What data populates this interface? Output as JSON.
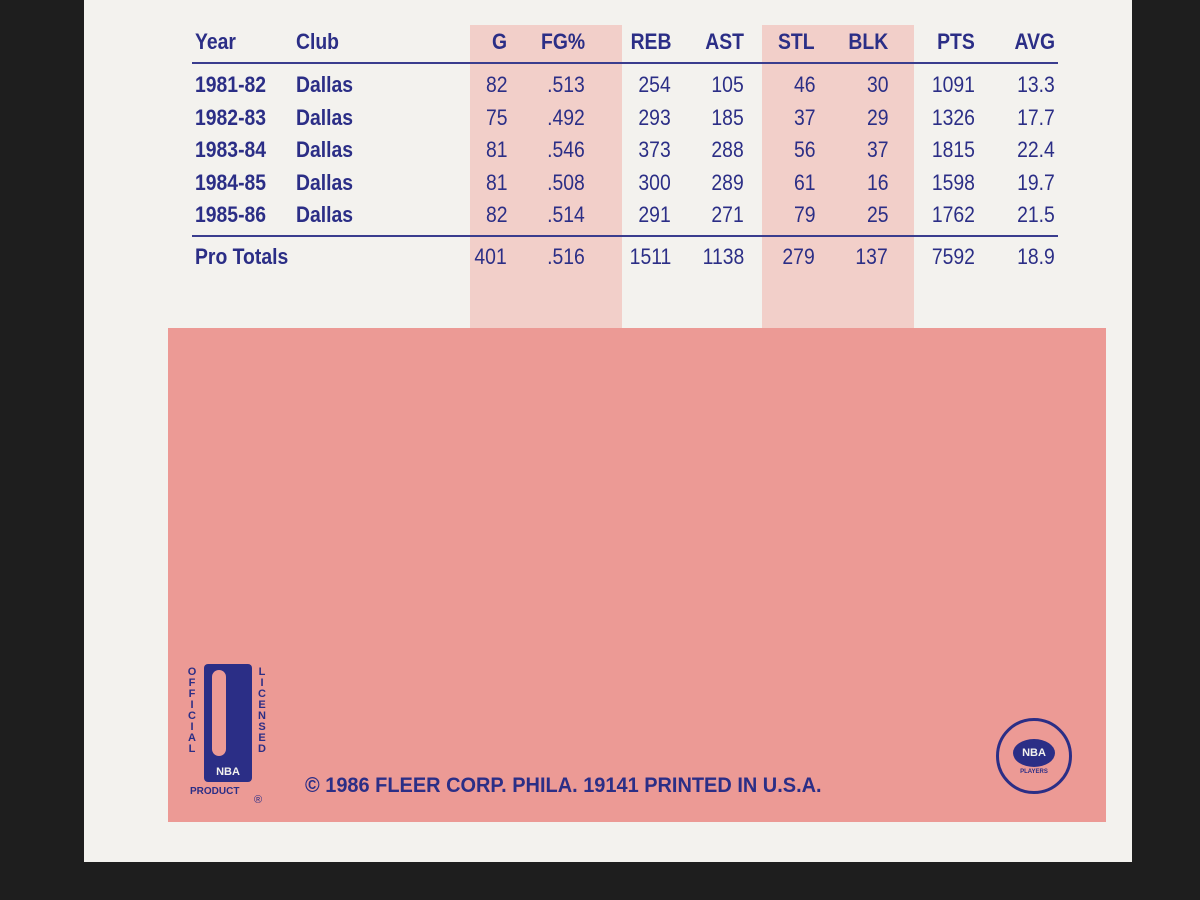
{
  "table": {
    "header": [
      "Year",
      "Club",
      "G",
      "FG%",
      "REB",
      "AST",
      "STL",
      "BLK",
      "PTS",
      "AVG"
    ],
    "rows": [
      [
        "1981-82",
        "Dallas",
        "82",
        ".513",
        "254",
        "105",
        "46",
        "30",
        "1091",
        "13.3"
      ],
      [
        "1982-83",
        "Dallas",
        "75",
        ".492",
        "293",
        "185",
        "37",
        "29",
        "1326",
        "17.7"
      ],
      [
        "1983-84",
        "Dallas",
        "81",
        ".546",
        "373",
        "288",
        "56",
        "37",
        "1815",
        "22.4"
      ],
      [
        "1984-85",
        "Dallas",
        "81",
        ".508",
        "300",
        "289",
        "61",
        "16",
        "1598",
        "19.7"
      ],
      [
        "1985-86",
        "Dallas",
        "82",
        ".514",
        "291",
        "271",
        "79",
        "25",
        "1762",
        "21.5"
      ]
    ],
    "totals": {
      "label": "Pro Totals",
      "values": [
        "401",
        ".516",
        "1511",
        "1138",
        "279",
        "137",
        "7592",
        "18.9"
      ]
    }
  },
  "logo": {
    "left_text": "OFFICIAL",
    "right_text": "LICENSED",
    "mark": "NBA",
    "bottom_text": "PRODUCT",
    "registered": "®"
  },
  "players_logo": {
    "mark": "NBA",
    "sub": "PLAYERS"
  },
  "footer": {
    "copyright": "© 1986 FLEER CORP. PHILA. 19141 PRINTED IN U.S.A."
  }
}
